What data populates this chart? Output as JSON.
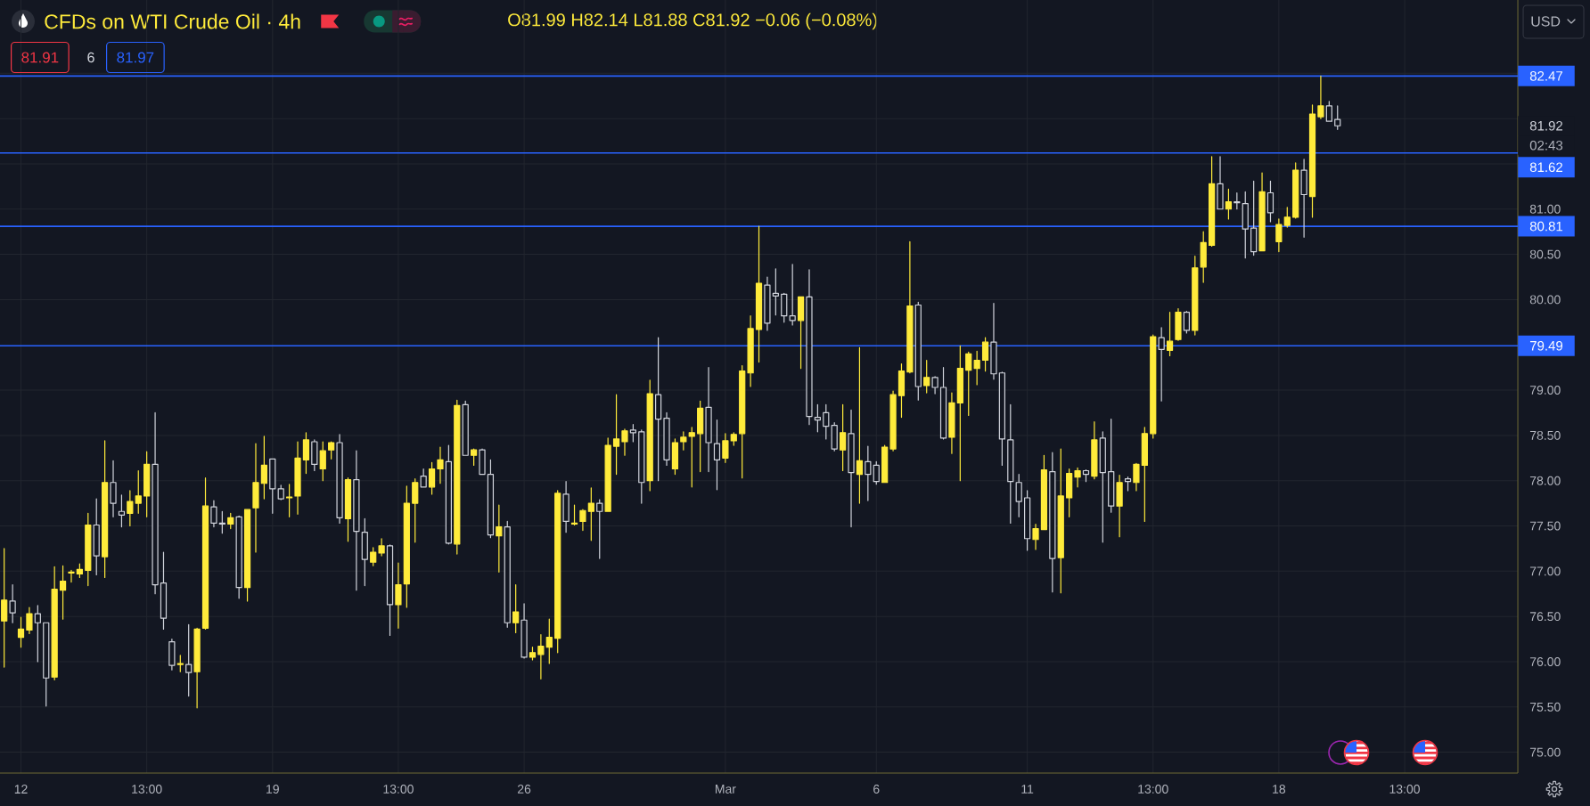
{
  "chart_data": {
    "type": "candlestick",
    "title": "CFDs on WTI Crude Oil · 4h",
    "subtitle": "O81.99 H82.14 L81.88 C81.92 −0.06 (−0.08%)",
    "categories": [
      null,
      null,
      "12",
      null,
      null,
      null,
      null,
      null,
      null,
      null,
      null,
      null,
      null,
      null,
      null,
      null,
      null,
      "13:00",
      null,
      null,
      null,
      null,
      null,
      null,
      null,
      null,
      null,
      null,
      null,
      null,
      null,
      null,
      "19",
      null,
      null,
      null,
      null,
      null,
      null,
      null,
      null,
      null,
      null,
      null,
      null,
      null,
      null,
      "13:00",
      null,
      null,
      null,
      null,
      null,
      null,
      null,
      null,
      null,
      null,
      null,
      null,
      null,
      null,
      "26",
      null,
      null,
      null,
      null,
      null,
      null,
      null,
      null,
      null,
      null,
      null,
      null,
      null,
      null,
      null,
      null,
      null,
      null,
      null,
      null,
      null,
      null,
      null,
      "Mar",
      null,
      null,
      null,
      null,
      null,
      null,
      null,
      null,
      null,
      null,
      null,
      null,
      null,
      null,
      null,
      null,
      null,
      "6",
      null,
      null,
      null,
      null,
      null,
      null,
      null,
      null,
      null,
      null,
      null,
      null,
      null,
      null,
      null,
      null,
      null,
      "11",
      null,
      null,
      null,
      null,
      null,
      null,
      null,
      null,
      null,
      null,
      null,
      null,
      null,
      null,
      "13:00",
      null,
      null,
      null,
      null,
      null,
      null,
      null,
      null,
      null,
      null,
      null,
      null,
      null,
      null,
      "18",
      null,
      null,
      null,
      null,
      null,
      null,
      null,
      null,
      null,
      null,
      null,
      null,
      null,
      null,
      "13:00",
      null,
      null,
      null,
      null,
      null,
      null,
      null,
      null,
      null,
      null,
      null,
      null,
      null
    ],
    "ohlc": [
      [
        76.45,
        77.25,
        75.94,
        76.68
      ],
      [
        76.67,
        76.85,
        76.43,
        76.54
      ],
      [
        76.27,
        76.49,
        76.16,
        76.36
      ],
      [
        76.35,
        76.6,
        76.31,
        76.53
      ],
      [
        76.53,
        76.62,
        76.0,
        76.43
      ],
      [
        76.43,
        76.43,
        75.51,
        75.82
      ],
      [
        75.83,
        77.05,
        75.8,
        76.8
      ],
      [
        76.79,
        77.06,
        76.47,
        76.89
      ],
      [
        76.98,
        77.01,
        76.88,
        76.99
      ],
      [
        76.97,
        77.08,
        76.93,
        77.02
      ],
      [
        77.01,
        77.64,
        76.84,
        77.51
      ],
      [
        77.51,
        77.8,
        76.96,
        77.17
      ],
      [
        77.16,
        78.44,
        76.93,
        77.98
      ],
      [
        77.98,
        78.22,
        77.6,
        77.75
      ],
      [
        77.66,
        77.84,
        77.49,
        77.62
      ],
      [
        77.64,
        77.89,
        77.5,
        77.77
      ],
      [
        77.75,
        78.11,
        77.64,
        77.83
      ],
      [
        77.83,
        78.32,
        77.6,
        78.18
      ],
      [
        78.18,
        78.75,
        76.75,
        76.85
      ],
      [
        76.87,
        77.21,
        76.36,
        76.48
      ],
      [
        76.22,
        76.25,
        75.91,
        75.96
      ],
      [
        75.97,
        76.07,
        75.89,
        75.98
      ],
      [
        75.97,
        76.41,
        75.62,
        75.88
      ],
      [
        75.89,
        76.37,
        75.49,
        76.36
      ],
      [
        76.37,
        78.03,
        76.36,
        77.72
      ],
      [
        77.71,
        77.78,
        77.49,
        77.53
      ],
      [
        77.53,
        77.66,
        77.42,
        77.52
      ],
      [
        77.52,
        77.64,
        77.47,
        77.59
      ],
      [
        77.6,
        77.61,
        76.7,
        76.82
      ],
      [
        76.82,
        77.68,
        76.67,
        77.68
      ],
      [
        77.7,
        78.41,
        77.21,
        77.98
      ],
      [
        77.97,
        78.49,
        77.8,
        78.17
      ],
      [
        78.24,
        78.24,
        77.64,
        77.91
      ],
      [
        77.91,
        77.95,
        77.79,
        77.8
      ],
      [
        77.81,
        77.96,
        77.6,
        77.82
      ],
      [
        77.83,
        78.43,
        77.63,
        78.25
      ],
      [
        78.23,
        78.53,
        78.08,
        78.45
      ],
      [
        78.43,
        78.45,
        78.11,
        78.18
      ],
      [
        78.13,
        78.43,
        78.0,
        78.33
      ],
      [
        78.34,
        78.43,
        78.24,
        78.42
      ],
      [
        78.42,
        78.51,
        77.53,
        77.59
      ],
      [
        77.58,
        78.03,
        77.33,
        78.01
      ],
      [
        78.01,
        78.33,
        76.79,
        77.44
      ],
      [
        77.43,
        77.58,
        76.84,
        77.13
      ],
      [
        77.1,
        77.26,
        77.06,
        77.21
      ],
      [
        77.2,
        77.36,
        77.17,
        77.28
      ],
      [
        77.28,
        77.29,
        76.29,
        76.63
      ],
      [
        76.63,
        77.09,
        76.37,
        76.85
      ],
      [
        76.86,
        77.94,
        76.6,
        77.75
      ],
      [
        77.75,
        78.02,
        77.32,
        77.98
      ],
      [
        78.05,
        78.13,
        77.93,
        77.93
      ],
      [
        77.93,
        78.2,
        77.85,
        78.13
      ],
      [
        78.13,
        78.37,
        77.97,
        78.23
      ],
      [
        78.21,
        78.39,
        77.3,
        77.31
      ],
      [
        77.3,
        78.89,
        77.19,
        78.83
      ],
      [
        78.84,
        78.88,
        78.28,
        78.28
      ],
      [
        78.28,
        78.35,
        78.17,
        78.34
      ],
      [
        78.34,
        78.35,
        78.07,
        78.07
      ],
      [
        78.07,
        78.23,
        77.37,
        77.4
      ],
      [
        77.39,
        77.73,
        76.99,
        77.49
      ],
      [
        77.49,
        77.55,
        76.38,
        76.43
      ],
      [
        76.43,
        76.85,
        76.32,
        76.55
      ],
      [
        76.46,
        76.64,
        76.04,
        76.05
      ],
      [
        76.05,
        76.16,
        76.02,
        76.1
      ],
      [
        76.08,
        76.3,
        75.81,
        76.17
      ],
      [
        76.16,
        76.47,
        75.98,
        76.27
      ],
      [
        76.26,
        77.89,
        76.1,
        77.86
      ],
      [
        77.85,
        77.99,
        77.43,
        77.55
      ],
      [
        77.52,
        77.73,
        77.51,
        77.53
      ],
      [
        77.55,
        77.68,
        77.45,
        77.67
      ],
      [
        77.66,
        77.92,
        77.34,
        77.75
      ],
      [
        77.75,
        77.79,
        77.14,
        77.66
      ],
      [
        77.66,
        78.47,
        77.66,
        78.39
      ],
      [
        78.38,
        78.95,
        78.07,
        78.46
      ],
      [
        78.43,
        78.57,
        78.28,
        78.55
      ],
      [
        78.56,
        78.62,
        78.43,
        78.53
      ],
      [
        78.54,
        78.56,
        77.75,
        77.98
      ],
      [
        78.0,
        79.11,
        77.89,
        78.96
      ],
      [
        78.95,
        79.58,
        78.0,
        78.68
      ],
      [
        78.69,
        78.75,
        78.17,
        78.23
      ],
      [
        78.13,
        78.46,
        78.07,
        78.42
      ],
      [
        78.43,
        78.54,
        78.34,
        78.48
      ],
      [
        78.49,
        78.59,
        77.93,
        78.53
      ],
      [
        78.52,
        78.88,
        78.1,
        78.8
      ],
      [
        78.81,
        79.25,
        78.1,
        78.42
      ],
      [
        78.41,
        78.67,
        77.9,
        78.23
      ],
      [
        78.25,
        78.52,
        78.2,
        78.44
      ],
      [
        78.44,
        78.53,
        78.39,
        78.51
      ],
      [
        78.52,
        79.27,
        78.03,
        79.21
      ],
      [
        79.19,
        79.82,
        79.04,
        79.68
      ],
      [
        79.67,
        80.81,
        79.31,
        80.18
      ],
      [
        80.16,
        80.25,
        79.66,
        79.74
      ],
      [
        80.07,
        80.34,
        79.83,
        80.04
      ],
      [
        80.06,
        80.07,
        79.75,
        79.82
      ],
      [
        79.82,
        80.39,
        79.72,
        79.77
      ],
      [
        79.77,
        80.03,
        79.24,
        80.03
      ],
      [
        80.03,
        80.33,
        78.62,
        78.71
      ],
      [
        78.7,
        78.84,
        78.54,
        78.67
      ],
      [
        78.75,
        78.84,
        78.46,
        78.6
      ],
      [
        78.61,
        78.64,
        78.33,
        78.35
      ],
      [
        78.34,
        78.84,
        78.11,
        78.53
      ],
      [
        78.52,
        78.78,
        77.49,
        78.09
      ],
      [
        78.07,
        79.47,
        77.75,
        78.22
      ],
      [
        78.21,
        78.38,
        77.78,
        78.07
      ],
      [
        78.17,
        78.21,
        77.96,
        77.99
      ],
      [
        77.98,
        78.39,
        77.98,
        78.37
      ],
      [
        78.35,
        78.99,
        78.33,
        78.95
      ],
      [
        78.94,
        79.29,
        78.7,
        79.21
      ],
      [
        79.2,
        80.64,
        79.19,
        79.93
      ],
      [
        79.94,
        79.97,
        78.89,
        79.04
      ],
      [
        79.05,
        79.33,
        78.97,
        79.14
      ],
      [
        79.14,
        79.15,
        78.96,
        79.03
      ],
      [
        79.03,
        79.25,
        78.46,
        78.47
      ],
      [
        78.48,
        78.97,
        78.3,
        78.86
      ],
      [
        78.86,
        79.49,
        78.0,
        79.24
      ],
      [
        79.22,
        79.42,
        78.72,
        79.4
      ],
      [
        79.24,
        79.43,
        79.06,
        79.33
      ],
      [
        79.33,
        79.58,
        79.21,
        79.53
      ],
      [
        79.53,
        79.96,
        79.12,
        79.18
      ],
      [
        79.19,
        79.2,
        78.17,
        78.46
      ],
      [
        78.45,
        78.84,
        77.53,
        77.99
      ],
      [
        77.98,
        78.07,
        77.6,
        77.77
      ],
      [
        77.81,
        77.89,
        77.23,
        77.36
      ],
      [
        77.35,
        77.52,
        77.24,
        77.47
      ],
      [
        77.46,
        78.28,
        77.46,
        78.12
      ],
      [
        78.1,
        78.31,
        76.77,
        77.14
      ],
      [
        77.15,
        78.35,
        76.76,
        77.83
      ],
      [
        77.81,
        78.13,
        77.6,
        78.08
      ],
      [
        78.04,
        78.14,
        77.93,
        78.11
      ],
      [
        78.11,
        78.12,
        77.99,
        78.07
      ],
      [
        78.05,
        78.65,
        78.02,
        78.45
      ],
      [
        78.47,
        78.54,
        77.32,
        78.09
      ],
      [
        78.1,
        78.68,
        77.65,
        77.72
      ],
      [
        77.72,
        78.06,
        77.38,
        77.98
      ],
      [
        78.02,
        78.04,
        77.89,
        77.99
      ],
      [
        77.98,
        78.19,
        77.89,
        78.18
      ],
      [
        78.17,
        78.59,
        77.55,
        78.52
      ],
      [
        78.52,
        79.61,
        78.47,
        79.59
      ],
      [
        79.58,
        79.69,
        78.88,
        79.45
      ],
      [
        79.44,
        79.86,
        79.38,
        79.54
      ],
      [
        79.56,
        79.9,
        79.55,
        79.86
      ],
      [
        79.86,
        79.87,
        79.63,
        79.66
      ],
      [
        79.66,
        80.48,
        79.61,
        80.35
      ],
      [
        80.36,
        80.75,
        80.19,
        80.63
      ],
      [
        80.6,
        81.58,
        80.59,
        81.28
      ],
      [
        81.28,
        81.58,
        81.0,
        81.0
      ],
      [
        81.0,
        81.22,
        80.89,
        81.08
      ],
      [
        81.08,
        81.18,
        81.0,
        81.07
      ],
      [
        81.06,
        81.19,
        80.46,
        80.78
      ],
      [
        80.79,
        81.31,
        80.49,
        80.53
      ],
      [
        80.54,
        81.4,
        80.54,
        81.19
      ],
      [
        81.18,
        81.31,
        80.86,
        80.96
      ],
      [
        80.64,
        80.89,
        80.53,
        80.83
      ],
      [
        80.82,
        81.02,
        80.8,
        80.91
      ],
      [
        80.91,
        81.51,
        80.9,
        81.43
      ],
      [
        81.43,
        81.55,
        80.69,
        81.16
      ],
      [
        81.14,
        82.15,
        80.91,
        82.05
      ],
      [
        82.02,
        82.47,
        82.0,
        82.14
      ],
      [
        82.14,
        82.19,
        81.97,
        81.97
      ],
      [
        81.99,
        82.14,
        81.88,
        81.92
      ],
      null,
      null,
      null,
      null,
      null,
      null,
      null,
      null,
      null,
      null,
      null,
      null,
      null,
      null,
      null,
      null,
      null,
      null,
      null,
      null,
      null
    ],
    "colors": [
      "#ffeb3b",
      "#d1d4dc",
      "#ffeb3b",
      "#ffeb3b",
      "#d1d4dc",
      "#d1d4dc",
      "#ffeb3b",
      "#ffeb3b",
      "#ffeb3b",
      "#ffeb3b",
      "#ffeb3b",
      "#d1d4dc",
      "#ffeb3b",
      "#d1d4dc",
      "#d1d4dc",
      "#ffeb3b",
      "#ffeb3b",
      "#ffeb3b",
      "#d1d4dc",
      "#d1d4dc",
      "#d1d4dc",
      "#ffeb3b",
      "#d1d4dc",
      "#ffeb3b",
      "#ffeb3b",
      "#d1d4dc",
      "#d1d4dc",
      "#ffeb3b",
      "#d1d4dc",
      "#ffeb3b",
      "#ffeb3b",
      "#ffeb3b",
      "#d1d4dc",
      "#d1d4dc",
      "#ffeb3b",
      "#ffeb3b",
      "#ffeb3b",
      "#d1d4dc",
      "#ffeb3b",
      "#ffeb3b",
      "#d1d4dc",
      "#ffeb3b",
      "#d1d4dc",
      "#d1d4dc",
      "#ffeb3b",
      "#ffeb3b",
      "#d1d4dc",
      "#ffeb3b",
      "#ffeb3b",
      "#ffeb3b",
      "#d1d4dc",
      "#ffeb3b",
      "#ffeb3b",
      "#d1d4dc",
      "#ffeb3b",
      "#d1d4dc",
      "#ffeb3b",
      "#d1d4dc",
      "#d1d4dc",
      "#ffeb3b",
      "#d1d4dc",
      "#ffeb3b",
      "#d1d4dc",
      "#ffeb3b",
      "#ffeb3b",
      "#ffeb3b",
      "#ffeb3b",
      "#d1d4dc",
      "#ffeb3b",
      "#ffeb3b",
      "#ffeb3b",
      "#d1d4dc",
      "#ffeb3b",
      "#ffeb3b",
      "#ffeb3b",
      "#d1d4dc",
      "#d1d4dc",
      "#ffeb3b",
      "#d1d4dc",
      "#d1d4dc",
      "#ffeb3b",
      "#ffeb3b",
      "#ffeb3b",
      "#ffeb3b",
      "#d1d4dc",
      "#d1d4dc",
      "#ffeb3b",
      "#ffeb3b",
      "#ffeb3b",
      "#ffeb3b",
      "#ffeb3b",
      "#d1d4dc",
      "#d1d4dc",
      "#d1d4dc",
      "#d1d4dc",
      "#ffeb3b",
      "#d1d4dc",
      "#d1d4dc",
      "#d1d4dc",
      "#d1d4dc",
      "#ffeb3b",
      "#d1d4dc",
      "#ffeb3b",
      "#d1d4dc",
      "#d1d4dc",
      "#ffeb3b",
      "#ffeb3b",
      "#ffeb3b",
      "#ffeb3b",
      "#d1d4dc",
      "#ffeb3b",
      "#d1d4dc",
      "#d1d4dc",
      "#ffeb3b",
      "#ffeb3b",
      "#ffeb3b",
      "#ffeb3b",
      "#ffeb3b",
      "#d1d4dc",
      "#d1d4dc",
      "#d1d4dc",
      "#d1d4dc",
      "#d1d4dc",
      "#ffeb3b",
      "#ffeb3b",
      "#d1d4dc",
      "#ffeb3b",
      "#ffeb3b",
      "#ffeb3b",
      "#d1d4dc",
      "#ffeb3b",
      "#d1d4dc",
      "#d1d4dc",
      "#ffeb3b",
      "#d1d4dc",
      "#ffeb3b",
      "#ffeb3b",
      "#ffeb3b",
      "#d1d4dc",
      "#ffeb3b",
      "#ffeb3b",
      "#d1d4dc",
      "#ffeb3b",
      "#ffeb3b",
      "#ffeb3b",
      "#d1d4dc",
      "#ffeb3b",
      "#d1d4dc",
      "#d1d4dc",
      "#d1d4dc",
      "#ffeb3b",
      "#d1d4dc",
      "#ffeb3b",
      "#ffeb3b",
      "#ffeb3b",
      "#d1d4dc",
      "#ffeb3b",
      "#ffeb3b",
      "#d1d4dc",
      "#d1d4dc",
      null,
      null,
      null,
      null,
      null,
      null,
      null,
      null,
      null,
      null,
      null,
      null,
      null,
      null,
      null,
      null,
      null,
      null,
      null,
      null,
      null
    ],
    "ylim": [
      74.77,
      83.31
    ],
    "yticks": [
      {
        "value": 75,
        "label": "75.00"
      },
      {
        "value": 75.5,
        "label": "75.50"
      },
      {
        "value": 76,
        "label": "76.00"
      },
      {
        "value": 76.5,
        "label": "76.50"
      },
      {
        "value": 77,
        "label": "77.00"
      },
      {
        "value": 77.5,
        "label": "77.50"
      },
      {
        "value": 78,
        "label": "78.00"
      },
      {
        "value": 78.5,
        "label": "78.50"
      },
      {
        "value": 79,
        "label": "79.00"
      },
      {
        "value": 80,
        "label": "80.00"
      },
      {
        "value": 80.5,
        "label": "80.50"
      },
      {
        "value": 81,
        "label": "81.00"
      },
      {
        "value": 81.5,
        "label": null
      },
      {
        "value": 82,
        "label": null
      },
      {
        "value": 82.5,
        "label": null
      }
    ],
    "grid": true,
    "ref_lines": [
      {
        "axis": "y",
        "value": 82.47,
        "label": "82.47",
        "color": "#2962ff"
      },
      {
        "axis": "y",
        "value": 81.62,
        "label": "81.62",
        "color": "#2962ff"
      },
      {
        "axis": "y",
        "value": 80.81,
        "label": "80.81",
        "color": "#2962ff"
      },
      {
        "axis": "y",
        "value": 79.49,
        "label": "79.49",
        "color": "#2962ff"
      }
    ],
    "annotations": [
      "81.92",
      "02:43",
      "81.91",
      "6",
      "81.97",
      "USD"
    ]
  }
}
